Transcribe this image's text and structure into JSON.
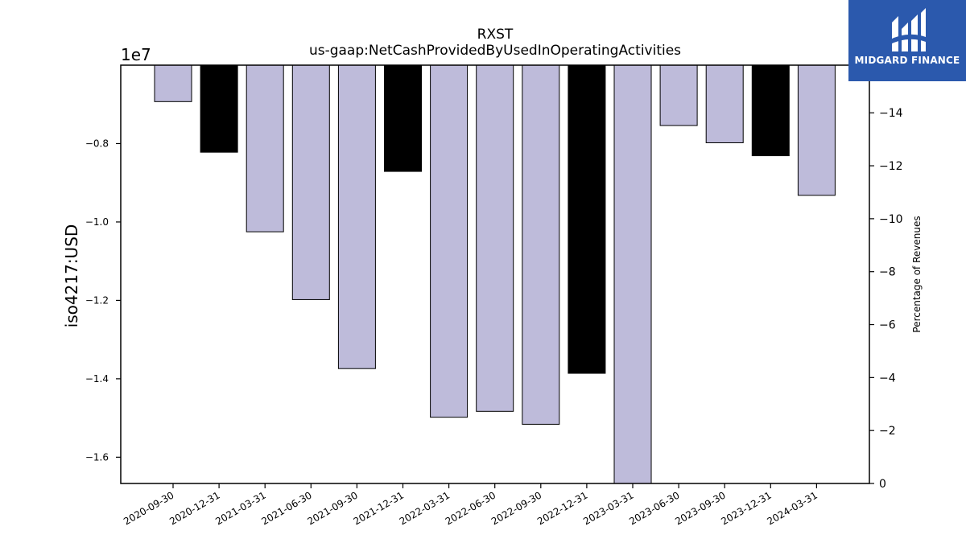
{
  "chart_data": {
    "type": "bar",
    "title": "RXST",
    "subtitle": "us-gaap:NetCashProvidedByUsedInOperatingActivities",
    "ylabel": "iso4217:USD",
    "y_offset_label": "1e7",
    "y2label": "Percentage of Revenues",
    "categories": [
      "2020-09-30",
      "2020-12-31",
      "2021-03-31",
      "2021-06-30",
      "2021-09-30",
      "2021-12-31",
      "2022-03-31",
      "2022-06-30",
      "2022-09-30",
      "2022-12-31",
      "2023-03-31",
      "2023-06-30",
      "2023-09-30",
      "2023-12-31",
      "2024-03-31"
    ],
    "values": [
      -6930000,
      -8220000,
      -10250000,
      -11980000,
      -13740000,
      -8710000,
      -14980000,
      -14830000,
      -15160000,
      -13860000,
      -16670000,
      -7540000,
      -7980000,
      -8310000,
      -9320000
    ],
    "bar_colors": [
      "#bebbda",
      "#000000",
      "#bebbda",
      "#bebbda",
      "#bebbda",
      "#000000",
      "#bebbda",
      "#bebbda",
      "#bebbda",
      "#000000",
      "#bebbda",
      "#bebbda",
      "#bebbda",
      "#000000",
      "#bebbda"
    ],
    "ylim": [
      -16670000,
      -6000000
    ],
    "yticks": [
      -8000000,
      -10000000,
      -12000000,
      -14000000,
      -16000000
    ],
    "ytick_labels": [
      "−0.8",
      "−1.0",
      "−1.2",
      "−1.4",
      "−1.6"
    ],
    "y2lim": [
      0,
      -15.8
    ],
    "y2ticks": [
      -14,
      -12,
      -10,
      -8,
      -6,
      -4,
      -2,
      0
    ],
    "y2tick_labels": [
      "−14",
      "−12",
      "−10",
      "−8",
      "−6",
      "−4",
      "−2",
      "0"
    ],
    "grid": false,
    "legend": "none"
  },
  "logo": {
    "text": "MIDGARD FINANCE",
    "brand_color": "#2b59ad"
  }
}
